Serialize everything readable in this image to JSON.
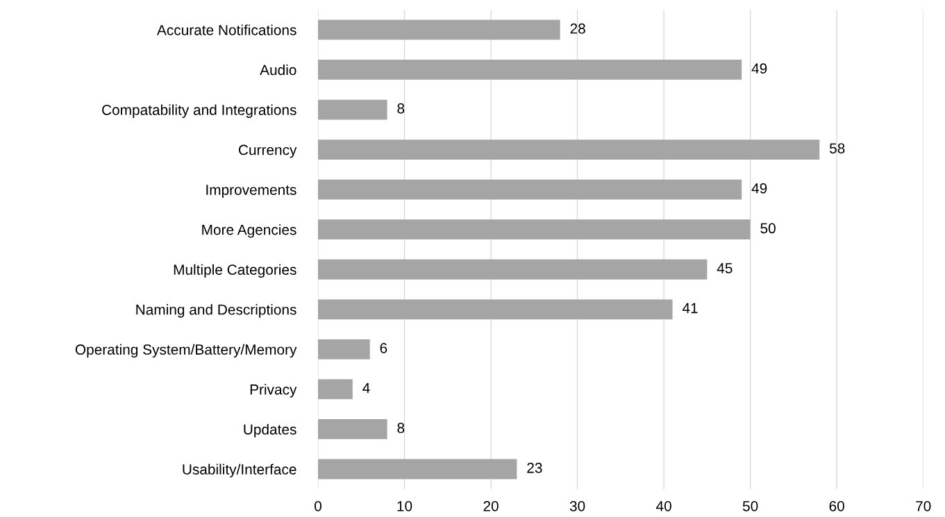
{
  "chart_data": {
    "type": "bar",
    "orientation": "horizontal",
    "categories": [
      "Accurate Notifications",
      "Audio",
      "Compatability and Integrations",
      "Currency",
      "Improvements",
      "More Agencies",
      "Multiple Categories",
      "Naming and Descriptions",
      "Operating System/Battery/Memory",
      "Privacy",
      "Updates",
      "Usability/Interface"
    ],
    "values": [
      28,
      49,
      8,
      58,
      49,
      50,
      45,
      41,
      6,
      4,
      8,
      23
    ],
    "color": "#a5a5a5",
    "xlim": [
      0,
      70
    ],
    "xticks": [
      0,
      10,
      20,
      30,
      40,
      50,
      60,
      70
    ],
    "grid": "x",
    "data_labels": true
  }
}
